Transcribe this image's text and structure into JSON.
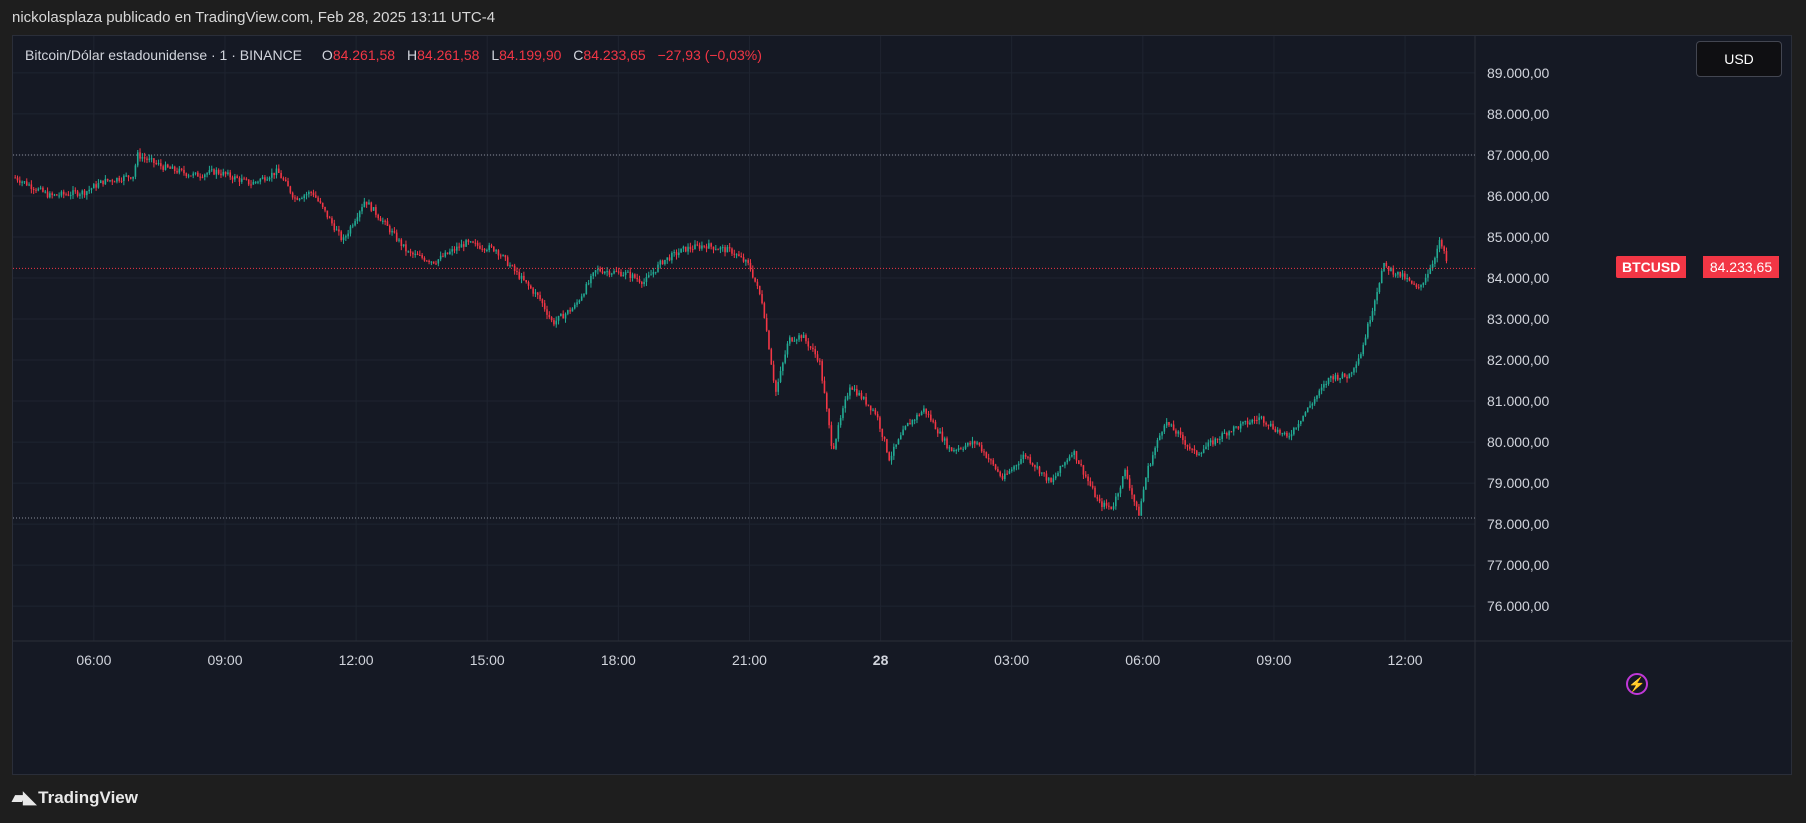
{
  "header": {
    "text": "nickolasplaza publicado en TradingView.com, Feb 28, 2025 13:11 UTC-4"
  },
  "legend": {
    "symbol": "Bitcoin/Dólar estadounidense · 1 · BINANCE",
    "o_label": "O",
    "o_value": "84.261,58",
    "h_label": "H",
    "h_value": "84.261,58",
    "l_label": "L",
    "l_value": "84.199,90",
    "c_label": "C",
    "c_value": "84.233,65",
    "change": "−27,93 (−0,03%)"
  },
  "currency_button": "USD",
  "price_tag": {
    "symbol": "BTCUSD",
    "value": "84.233,65"
  },
  "footer": {
    "brand": "TradingView",
    "logo": "tradingview-logo-icon"
  },
  "icons": {
    "bolt": "lightning-icon"
  },
  "colors": {
    "up": "#22ab94",
    "down": "#f23645",
    "background": "#151924",
    "grid": "#1f2430"
  },
  "chart_data": {
    "type": "candlestick",
    "symbol": "BTCUSD",
    "interval": "1",
    "x_ticks": [
      "06:00",
      "09:00",
      "12:00",
      "15:00",
      "18:00",
      "21:00",
      "28",
      "03:00",
      "06:00",
      "09:00",
      "12:00"
    ],
    "x_tick_hours": [
      6,
      9,
      12,
      15,
      18,
      21,
      24,
      27,
      30,
      33,
      36
    ],
    "x_range_hours": [
      4.15,
      37.6
    ],
    "y_ticks": [
      76000,
      77000,
      78000,
      79000,
      80000,
      81000,
      82000,
      83000,
      84000,
      85000,
      86000,
      87000,
      88000,
      89000
    ],
    "y_tick_labels": [
      "76.000,00",
      "77.000,00",
      "78.000,00",
      "79.000,00",
      "80.000,00",
      "81.000,00",
      "82.000,00",
      "83.000,00",
      "84.000,00",
      "85.000,00",
      "86.000,00",
      "87.000,00",
      "88.000,00",
      "89.000,00"
    ],
    "ylim": [
      75150,
      89900
    ],
    "last_price": 84233.65,
    "reference_lines": [
      87000,
      78150
    ],
    "price_path": [
      [
        4.2,
        86450
      ],
      [
        5.0,
        86000
      ],
      [
        5.8,
        86100
      ],
      [
        6.2,
        86350
      ],
      [
        6.9,
        86500
      ],
      [
        7.0,
        87000
      ],
      [
        7.6,
        86700
      ],
      [
        8.3,
        86500
      ],
      [
        8.8,
        86600
      ],
      [
        9.6,
        86300
      ],
      [
        10.2,
        86600
      ],
      [
        10.6,
        85950
      ],
      [
        11.0,
        86100
      ],
      [
        11.7,
        84900
      ],
      [
        12.2,
        85900
      ],
      [
        12.6,
        85400
      ],
      [
        13.2,
        84600
      ],
      [
        13.8,
        84400
      ],
      [
        14.5,
        84850
      ],
      [
        15.2,
        84700
      ],
      [
        15.6,
        84200
      ],
      [
        16.2,
        83500
      ],
      [
        16.5,
        82900
      ],
      [
        17.0,
        83300
      ],
      [
        17.5,
        84200
      ],
      [
        18.2,
        84100
      ],
      [
        18.6,
        83900
      ],
      [
        19.0,
        84400
      ],
      [
        19.5,
        84700
      ],
      [
        20.0,
        84800
      ],
      [
        20.6,
        84650
      ],
      [
        21.0,
        84300
      ],
      [
        21.3,
        83400
      ],
      [
        21.6,
        81200
      ],
      [
        21.9,
        82500
      ],
      [
        22.2,
        82600
      ],
      [
        22.6,
        82000
      ],
      [
        22.9,
        79800
      ],
      [
        23.3,
        81400
      ],
      [
        23.9,
        80700
      ],
      [
        24.2,
        79600
      ],
      [
        24.6,
        80400
      ],
      [
        25.0,
        80800
      ],
      [
        25.6,
        79800
      ],
      [
        26.2,
        80000
      ],
      [
        26.8,
        79100
      ],
      [
        27.3,
        79700
      ],
      [
        27.9,
        79000
      ],
      [
        28.4,
        79800
      ],
      [
        29.0,
        78500
      ],
      [
        29.3,
        78400
      ],
      [
        29.6,
        79300
      ],
      [
        29.9,
        78200
      ],
      [
        30.1,
        79300
      ],
      [
        30.5,
        80500
      ],
      [
        30.8,
        80200
      ],
      [
        31.2,
        79700
      ],
      [
        32.0,
        80300
      ],
      [
        32.7,
        80600
      ],
      [
        33.3,
        80100
      ],
      [
        33.9,
        81000
      ],
      [
        34.3,
        81600
      ],
      [
        34.7,
        81600
      ],
      [
        35.0,
        82200
      ],
      [
        35.5,
        84300
      ],
      [
        36.0,
        84000
      ],
      [
        36.3,
        83700
      ],
      [
        36.6,
        84300
      ],
      [
        36.8,
        84900
      ],
      [
        37.0,
        84233.65
      ]
    ]
  }
}
